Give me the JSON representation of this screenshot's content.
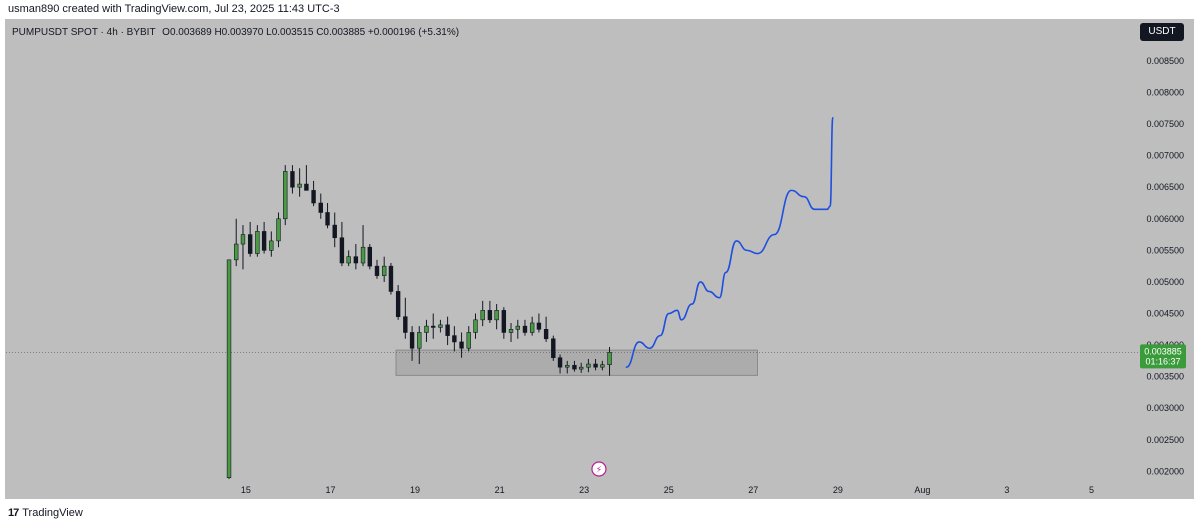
{
  "page": {
    "caption": "usman890 created with TradingView.com, Jul 23, 2025 11:43 UTC-3",
    "brand": "TradingView",
    "brand_mark": "17"
  },
  "header": {
    "symbol": "PUMPUSDT SPOT",
    "interval": "4h",
    "exchange": "BYBIT",
    "ohlc_text": "O0.003689 H0.003970 L0.003515 C0.003885 +0.000196 (+5.31%)",
    "currency_button": "USDT"
  },
  "price_badge": {
    "price": "0.003885",
    "countdown": "01:16:37"
  },
  "event_marker": "⚡",
  "colors": {
    "up": "#4a9a43",
    "down": "#131722",
    "projection": "#1e4fe0",
    "zone": "#a9a9a9",
    "badge": "#3a9b3a",
    "background": "#bebebe"
  },
  "chart_data": {
    "type": "candlestick",
    "title": "PUMPUSDT SPOT · 4h · BYBIT",
    "ylim": [
      0.0018,
      0.0088
    ],
    "y_ticks": [
      "0.002000",
      "0.002500",
      "0.003000",
      "0.003500",
      "0.004000",
      "0.004500",
      "0.005000",
      "0.005500",
      "0.006000",
      "0.006500",
      "0.007000",
      "0.007500",
      "0.008000",
      "0.008500"
    ],
    "x_ticks": [
      {
        "label": "15",
        "day": 15
      },
      {
        "label": "17",
        "day": 17
      },
      {
        "label": "19",
        "day": 19
      },
      {
        "label": "21",
        "day": 21
      },
      {
        "label": "23",
        "day": 23
      },
      {
        "label": "25",
        "day": 25
      },
      {
        "label": "27",
        "day": 27
      },
      {
        "label": "29",
        "day": 29
      },
      {
        "label": "Aug",
        "day": 31
      },
      {
        "label": "3",
        "day": 33
      },
      {
        "label": "5",
        "day": 35
      }
    ],
    "x_range": [
      14.15,
      36.1
    ],
    "candles": [
      {
        "d": 14.6,
        "o": 0.0019,
        "h": 0.00535,
        "l": 0.00188,
        "c": 0.00535
      },
      {
        "d": 14.77,
        "o": 0.00535,
        "h": 0.006,
        "l": 0.00525,
        "c": 0.0056
      },
      {
        "d": 14.93,
        "o": 0.0056,
        "h": 0.0059,
        "l": 0.0052,
        "c": 0.00575
      },
      {
        "d": 15.1,
        "o": 0.00575,
        "h": 0.00595,
        "l": 0.0054,
        "c": 0.00545
      },
      {
        "d": 15.27,
        "o": 0.00545,
        "h": 0.0059,
        "l": 0.0054,
        "c": 0.0058
      },
      {
        "d": 15.43,
        "o": 0.0058,
        "h": 0.00595,
        "l": 0.00545,
        "c": 0.0055
      },
      {
        "d": 15.6,
        "o": 0.0055,
        "h": 0.0058,
        "l": 0.0054,
        "c": 0.00565
      },
      {
        "d": 15.77,
        "o": 0.00565,
        "h": 0.0061,
        "l": 0.00555,
        "c": 0.006
      },
      {
        "d": 15.93,
        "o": 0.006,
        "h": 0.00685,
        "l": 0.0059,
        "c": 0.00675
      },
      {
        "d": 16.1,
        "o": 0.00675,
        "h": 0.00685,
        "l": 0.0064,
        "c": 0.0065
      },
      {
        "d": 16.27,
        "o": 0.0065,
        "h": 0.0068,
        "l": 0.00635,
        "c": 0.00655
      },
      {
        "d": 16.43,
        "o": 0.00655,
        "h": 0.00685,
        "l": 0.00645,
        "c": 0.00645
      },
      {
        "d": 16.6,
        "o": 0.00645,
        "h": 0.0066,
        "l": 0.0062,
        "c": 0.00625
      },
      {
        "d": 16.77,
        "o": 0.00625,
        "h": 0.0064,
        "l": 0.006,
        "c": 0.0061
      },
      {
        "d": 16.93,
        "o": 0.0061,
        "h": 0.00625,
        "l": 0.00585,
        "c": 0.0059
      },
      {
        "d": 17.1,
        "o": 0.0059,
        "h": 0.0061,
        "l": 0.00555,
        "c": 0.0057
      },
      {
        "d": 17.27,
        "o": 0.0057,
        "h": 0.00595,
        "l": 0.00525,
        "c": 0.0053
      },
      {
        "d": 17.43,
        "o": 0.0053,
        "h": 0.0055,
        "l": 0.00525,
        "c": 0.0054
      },
      {
        "d": 17.6,
        "o": 0.0054,
        "h": 0.0056,
        "l": 0.0052,
        "c": 0.0053
      },
      {
        "d": 17.77,
        "o": 0.0053,
        "h": 0.0059,
        "l": 0.00525,
        "c": 0.00555
      },
      {
        "d": 17.93,
        "o": 0.00555,
        "h": 0.0056,
        "l": 0.0052,
        "c": 0.00525
      },
      {
        "d": 18.1,
        "o": 0.00525,
        "h": 0.00535,
        "l": 0.00505,
        "c": 0.0051
      },
      {
        "d": 18.27,
        "o": 0.0051,
        "h": 0.0054,
        "l": 0.005,
        "c": 0.00525
      },
      {
        "d": 18.43,
        "o": 0.00525,
        "h": 0.0053,
        "l": 0.0048,
        "c": 0.00485
      },
      {
        "d": 18.6,
        "o": 0.00485,
        "h": 0.00495,
        "l": 0.0044,
        "c": 0.00445
      },
      {
        "d": 18.77,
        "o": 0.00445,
        "h": 0.00475,
        "l": 0.0041,
        "c": 0.0042
      },
      {
        "d": 18.93,
        "o": 0.0042,
        "h": 0.0043,
        "l": 0.00375,
        "c": 0.00395
      },
      {
        "d": 19.1,
        "o": 0.00395,
        "h": 0.0043,
        "l": 0.0037,
        "c": 0.0042
      },
      {
        "d": 19.27,
        "o": 0.0042,
        "h": 0.0044,
        "l": 0.00405,
        "c": 0.0043
      },
      {
        "d": 19.43,
        "o": 0.0043,
        "h": 0.0045,
        "l": 0.0041,
        "c": 0.00428
      },
      {
        "d": 19.6,
        "o": 0.00428,
        "h": 0.0044,
        "l": 0.0042,
        "c": 0.00432
      },
      {
        "d": 19.77,
        "o": 0.00432,
        "h": 0.00445,
        "l": 0.004,
        "c": 0.00415
      },
      {
        "d": 19.93,
        "o": 0.00415,
        "h": 0.0043,
        "l": 0.0039,
        "c": 0.00405
      },
      {
        "d": 20.1,
        "o": 0.00405,
        "h": 0.0042,
        "l": 0.0038,
        "c": 0.00395
      },
      {
        "d": 20.27,
        "o": 0.00395,
        "h": 0.0043,
        "l": 0.0039,
        "c": 0.0042
      },
      {
        "d": 20.43,
        "o": 0.0042,
        "h": 0.0045,
        "l": 0.0041,
        "c": 0.0044
      },
      {
        "d": 20.6,
        "o": 0.0044,
        "h": 0.0047,
        "l": 0.0043,
        "c": 0.00455
      },
      {
        "d": 20.77,
        "o": 0.00455,
        "h": 0.0047,
        "l": 0.00435,
        "c": 0.0044
      },
      {
        "d": 20.93,
        "o": 0.0044,
        "h": 0.00465,
        "l": 0.00425,
        "c": 0.00455
      },
      {
        "d": 21.1,
        "o": 0.00455,
        "h": 0.0046,
        "l": 0.0041,
        "c": 0.0042
      },
      {
        "d": 21.27,
        "o": 0.0042,
        "h": 0.00435,
        "l": 0.00405,
        "c": 0.00425
      },
      {
        "d": 21.43,
        "o": 0.00425,
        "h": 0.0044,
        "l": 0.0041,
        "c": 0.0043
      },
      {
        "d": 21.6,
        "o": 0.0043,
        "h": 0.0044,
        "l": 0.00415,
        "c": 0.0042
      },
      {
        "d": 21.77,
        "o": 0.0042,
        "h": 0.00445,
        "l": 0.00415,
        "c": 0.00435
      },
      {
        "d": 21.93,
        "o": 0.00435,
        "h": 0.0045,
        "l": 0.0042,
        "c": 0.00425
      },
      {
        "d": 22.1,
        "o": 0.00425,
        "h": 0.00445,
        "l": 0.00405,
        "c": 0.0041
      },
      {
        "d": 22.27,
        "o": 0.0041,
        "h": 0.00415,
        "l": 0.00375,
        "c": 0.0038
      },
      {
        "d": 22.43,
        "o": 0.0038,
        "h": 0.00385,
        "l": 0.00355,
        "c": 0.00365
      },
      {
        "d": 22.6,
        "o": 0.00365,
        "h": 0.00375,
        "l": 0.00355,
        "c": 0.00368
      },
      {
        "d": 22.77,
        "o": 0.00368,
        "h": 0.00375,
        "l": 0.00358,
        "c": 0.00362
      },
      {
        "d": 22.93,
        "o": 0.00362,
        "h": 0.00372,
        "l": 0.00356,
        "c": 0.00365
      },
      {
        "d": 23.1,
        "o": 0.00365,
        "h": 0.00378,
        "l": 0.00357,
        "c": 0.0037
      },
      {
        "d": 23.27,
        "o": 0.0037,
        "h": 0.00378,
        "l": 0.0036,
        "c": 0.00365
      },
      {
        "d": 23.43,
        "o": 0.00365,
        "h": 0.00375,
        "l": 0.0036,
        "c": 0.003689
      },
      {
        "d": 23.6,
        "o": 0.003689,
        "h": 0.00397,
        "l": 0.003515,
        "c": 0.003885
      }
    ],
    "support_zone": {
      "d_start": 18.55,
      "d_end": 27.1,
      "low": 0.00352,
      "high": 0.00392
    },
    "last_price_line": 0.003885,
    "projection": [
      {
        "d": 24.0,
        "p": 0.00365
      },
      {
        "d": 24.3,
        "p": 0.00405
      },
      {
        "d": 24.55,
        "p": 0.00395
      },
      {
        "d": 24.8,
        "p": 0.00415
      },
      {
        "d": 25.0,
        "p": 0.0045
      },
      {
        "d": 25.2,
        "p": 0.00455
      },
      {
        "d": 25.3,
        "p": 0.0044
      },
      {
        "d": 25.55,
        "p": 0.00465
      },
      {
        "d": 25.75,
        "p": 0.005
      },
      {
        "d": 25.95,
        "p": 0.00485
      },
      {
        "d": 26.2,
        "p": 0.00475
      },
      {
        "d": 26.35,
        "p": 0.00515
      },
      {
        "d": 26.6,
        "p": 0.00565
      },
      {
        "d": 26.85,
        "p": 0.0055
      },
      {
        "d": 27.1,
        "p": 0.00545
      },
      {
        "d": 27.5,
        "p": 0.00575
      },
      {
        "d": 27.9,
        "p": 0.00645
      },
      {
        "d": 28.2,
        "p": 0.00635
      },
      {
        "d": 28.45,
        "p": 0.00615
      },
      {
        "d": 28.75,
        "p": 0.00615
      },
      {
        "d": 28.82,
        "p": 0.0062
      },
      {
        "d": 28.88,
        "p": 0.0076
      }
    ],
    "event_day": 23.35
  }
}
